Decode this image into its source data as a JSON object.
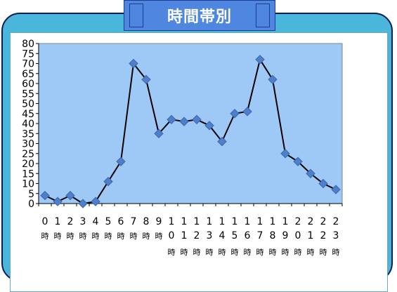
{
  "title": "時間帯別",
  "colors": {
    "frame": "#4ab6dc",
    "frame_border": "#0b1e56",
    "tab": "#4f86e0",
    "plot_bg": "#9ec9f7",
    "line": "#000000",
    "marker": "#4f7fc9"
  },
  "chart_data": {
    "type": "line",
    "title": "",
    "xlabel": "",
    "ylabel": "",
    "categories": [
      "0時",
      "1時",
      "2時",
      "3時",
      "4時",
      "5時",
      "6時",
      "7時",
      "8時",
      "9時",
      "10時",
      "11時",
      "12時",
      "13時",
      "14時",
      "15時",
      "16時",
      "17時",
      "18時",
      "19時",
      "20時",
      "21時",
      "22時",
      "23時"
    ],
    "values": [
      4,
      1,
      4,
      0,
      1,
      11,
      21,
      70,
      62,
      35,
      42,
      41,
      42,
      39,
      31,
      45,
      46,
      72,
      62,
      25,
      21,
      15,
      10,
      7
    ],
    "ylim": [
      0,
      80
    ],
    "y_ticks": [
      "0",
      "5",
      "10",
      "15",
      "20",
      "25",
      "30",
      "35",
      "40",
      "45",
      "50",
      "55",
      "60",
      "65",
      "70",
      "75",
      "80"
    ],
    "x_tick_line1": [
      "0",
      "1",
      "2",
      "3",
      "4",
      "5",
      "6",
      "7",
      "8",
      "9",
      "1",
      "1",
      "1",
      "1",
      "1",
      "1",
      "1",
      "1",
      "1",
      "1",
      "2",
      "2",
      "2",
      "2"
    ],
    "x_tick_line2": [
      "時",
      "時",
      "時",
      "時",
      "時",
      "時",
      "時",
      "時",
      "時",
      "時",
      "0",
      "1",
      "2",
      "3",
      "4",
      "5",
      "6",
      "7",
      "8",
      "9",
      "0",
      "1",
      "2",
      "3"
    ],
    "x_tick_line3": [
      "",
      "",
      "",
      "",
      "",
      "",
      "",
      "",
      "",
      "",
      "時",
      "時",
      "時",
      "時",
      "時",
      "時",
      "時",
      "時",
      "時",
      "時",
      "時",
      "時",
      "時",
      "時"
    ],
    "grid": false,
    "legend": "none",
    "marker": "diamond"
  }
}
